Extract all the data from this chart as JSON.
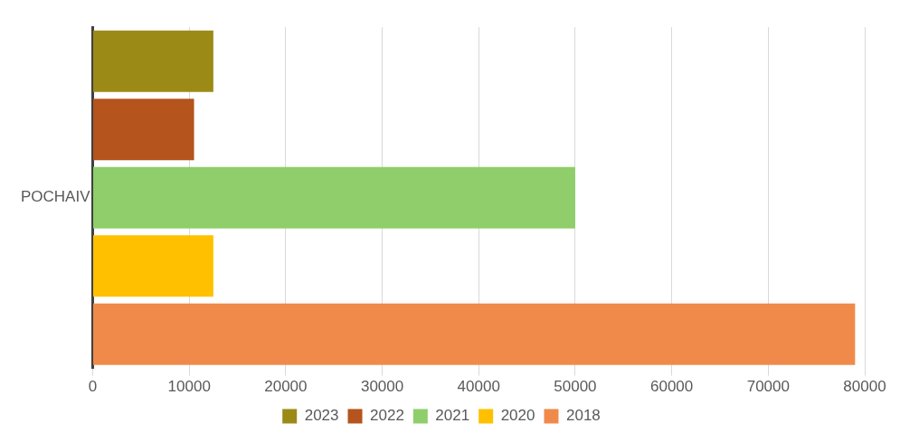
{
  "chart_data": {
    "type": "bar",
    "orientation": "horizontal",
    "categories": [
      null,
      null,
      "POCHAIV",
      null,
      null
    ],
    "series": [
      {
        "name": "2023",
        "color": "#9c8a17",
        "values": [
          12500,
          null,
          null,
          null,
          null
        ]
      },
      {
        "name": "2022",
        "color": "#b5541c",
        "values": [
          null,
          10500,
          null,
          null,
          null
        ]
      },
      {
        "name": "2021",
        "color": "#8fce6a",
        "values": [
          null,
          null,
          50000,
          null,
          null
        ]
      },
      {
        "name": "2020",
        "color": "#ffc000",
        "values": [
          null,
          null,
          null,
          12500,
          null
        ]
      },
      {
        "name": "2018",
        "color": "#f08a4b",
        "values": [
          null,
          null,
          null,
          null,
          79000
        ]
      }
    ],
    "xlim": [
      0,
      80000
    ],
    "xticks": [
      0,
      10000,
      20000,
      30000,
      40000,
      50000,
      60000,
      70000,
      80000
    ],
    "grid": "x",
    "legend": "bottom"
  }
}
